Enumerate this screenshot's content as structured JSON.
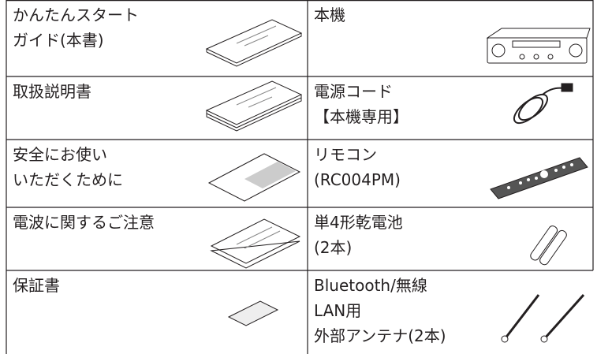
{
  "table": {
    "rows": [
      [
        [
          "かんたんスタート",
          "ガイド(本書)"
        ],
        [
          "本機"
        ]
      ],
      [
        [
          "取扱説明書"
        ],
        [
          "電源コード",
          "【本機専用】"
        ]
      ],
      [
        [
          "安全にお使い",
          "いただくために"
        ],
        [
          "リモコン",
          "(RC004PM)"
        ]
      ],
      [
        [
          "電波に関するご注意"
        ],
        [
          "単4形乾電池",
          "(2本)"
        ]
      ],
      [
        [
          "保証書"
        ],
        [
          "Bluetooth/無線",
          "LAN用",
          "外部アンテナ(2本)"
        ]
      ]
    ]
  }
}
